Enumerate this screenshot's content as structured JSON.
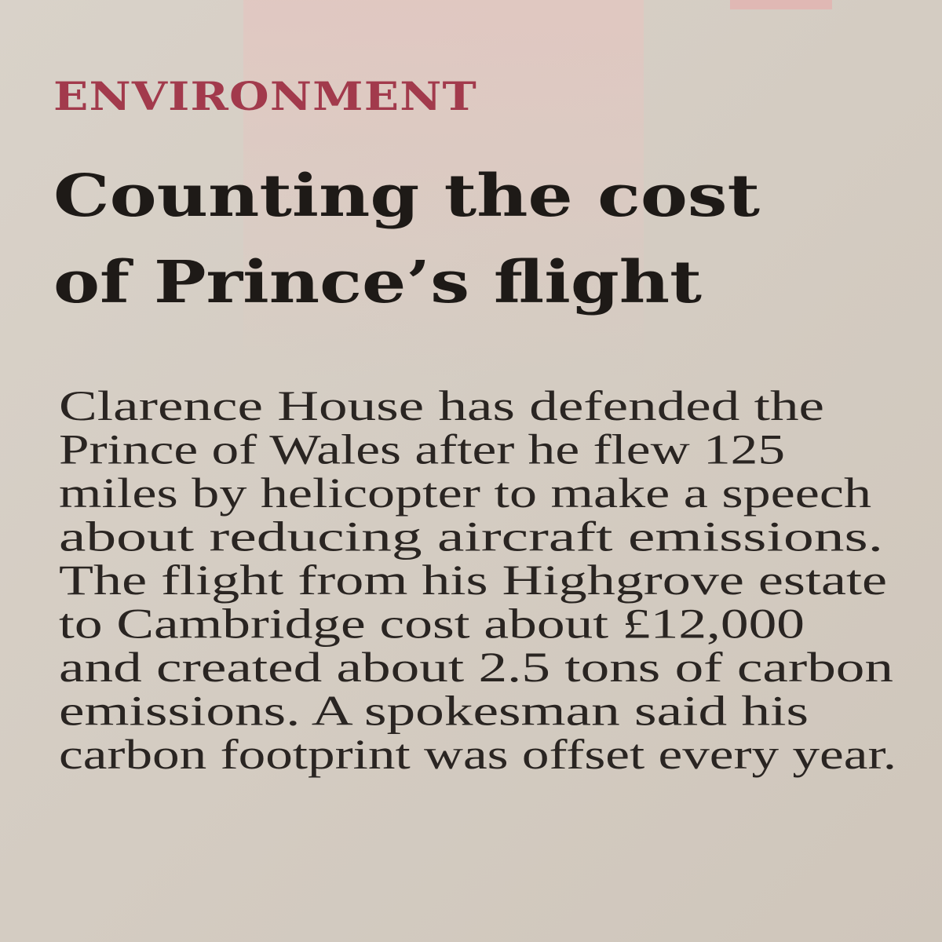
{
  "section": "ENVIRONMENT",
  "headline": [
    "Counting the cost",
    "of Prince’s flight"
  ],
  "body": [
    "Clarence House has defended the",
    "Prince of Wales after he flew 125",
    "miles by helicopter to make a speech",
    "about reducing aircraft emissions.",
    "The flight from his Highgrove estate",
    "to Cambridge cost about £12,000",
    "and created about 2.5 tons of carbon",
    "emissions. A spokesman said his",
    "carbon footprint was offset every year."
  ]
}
